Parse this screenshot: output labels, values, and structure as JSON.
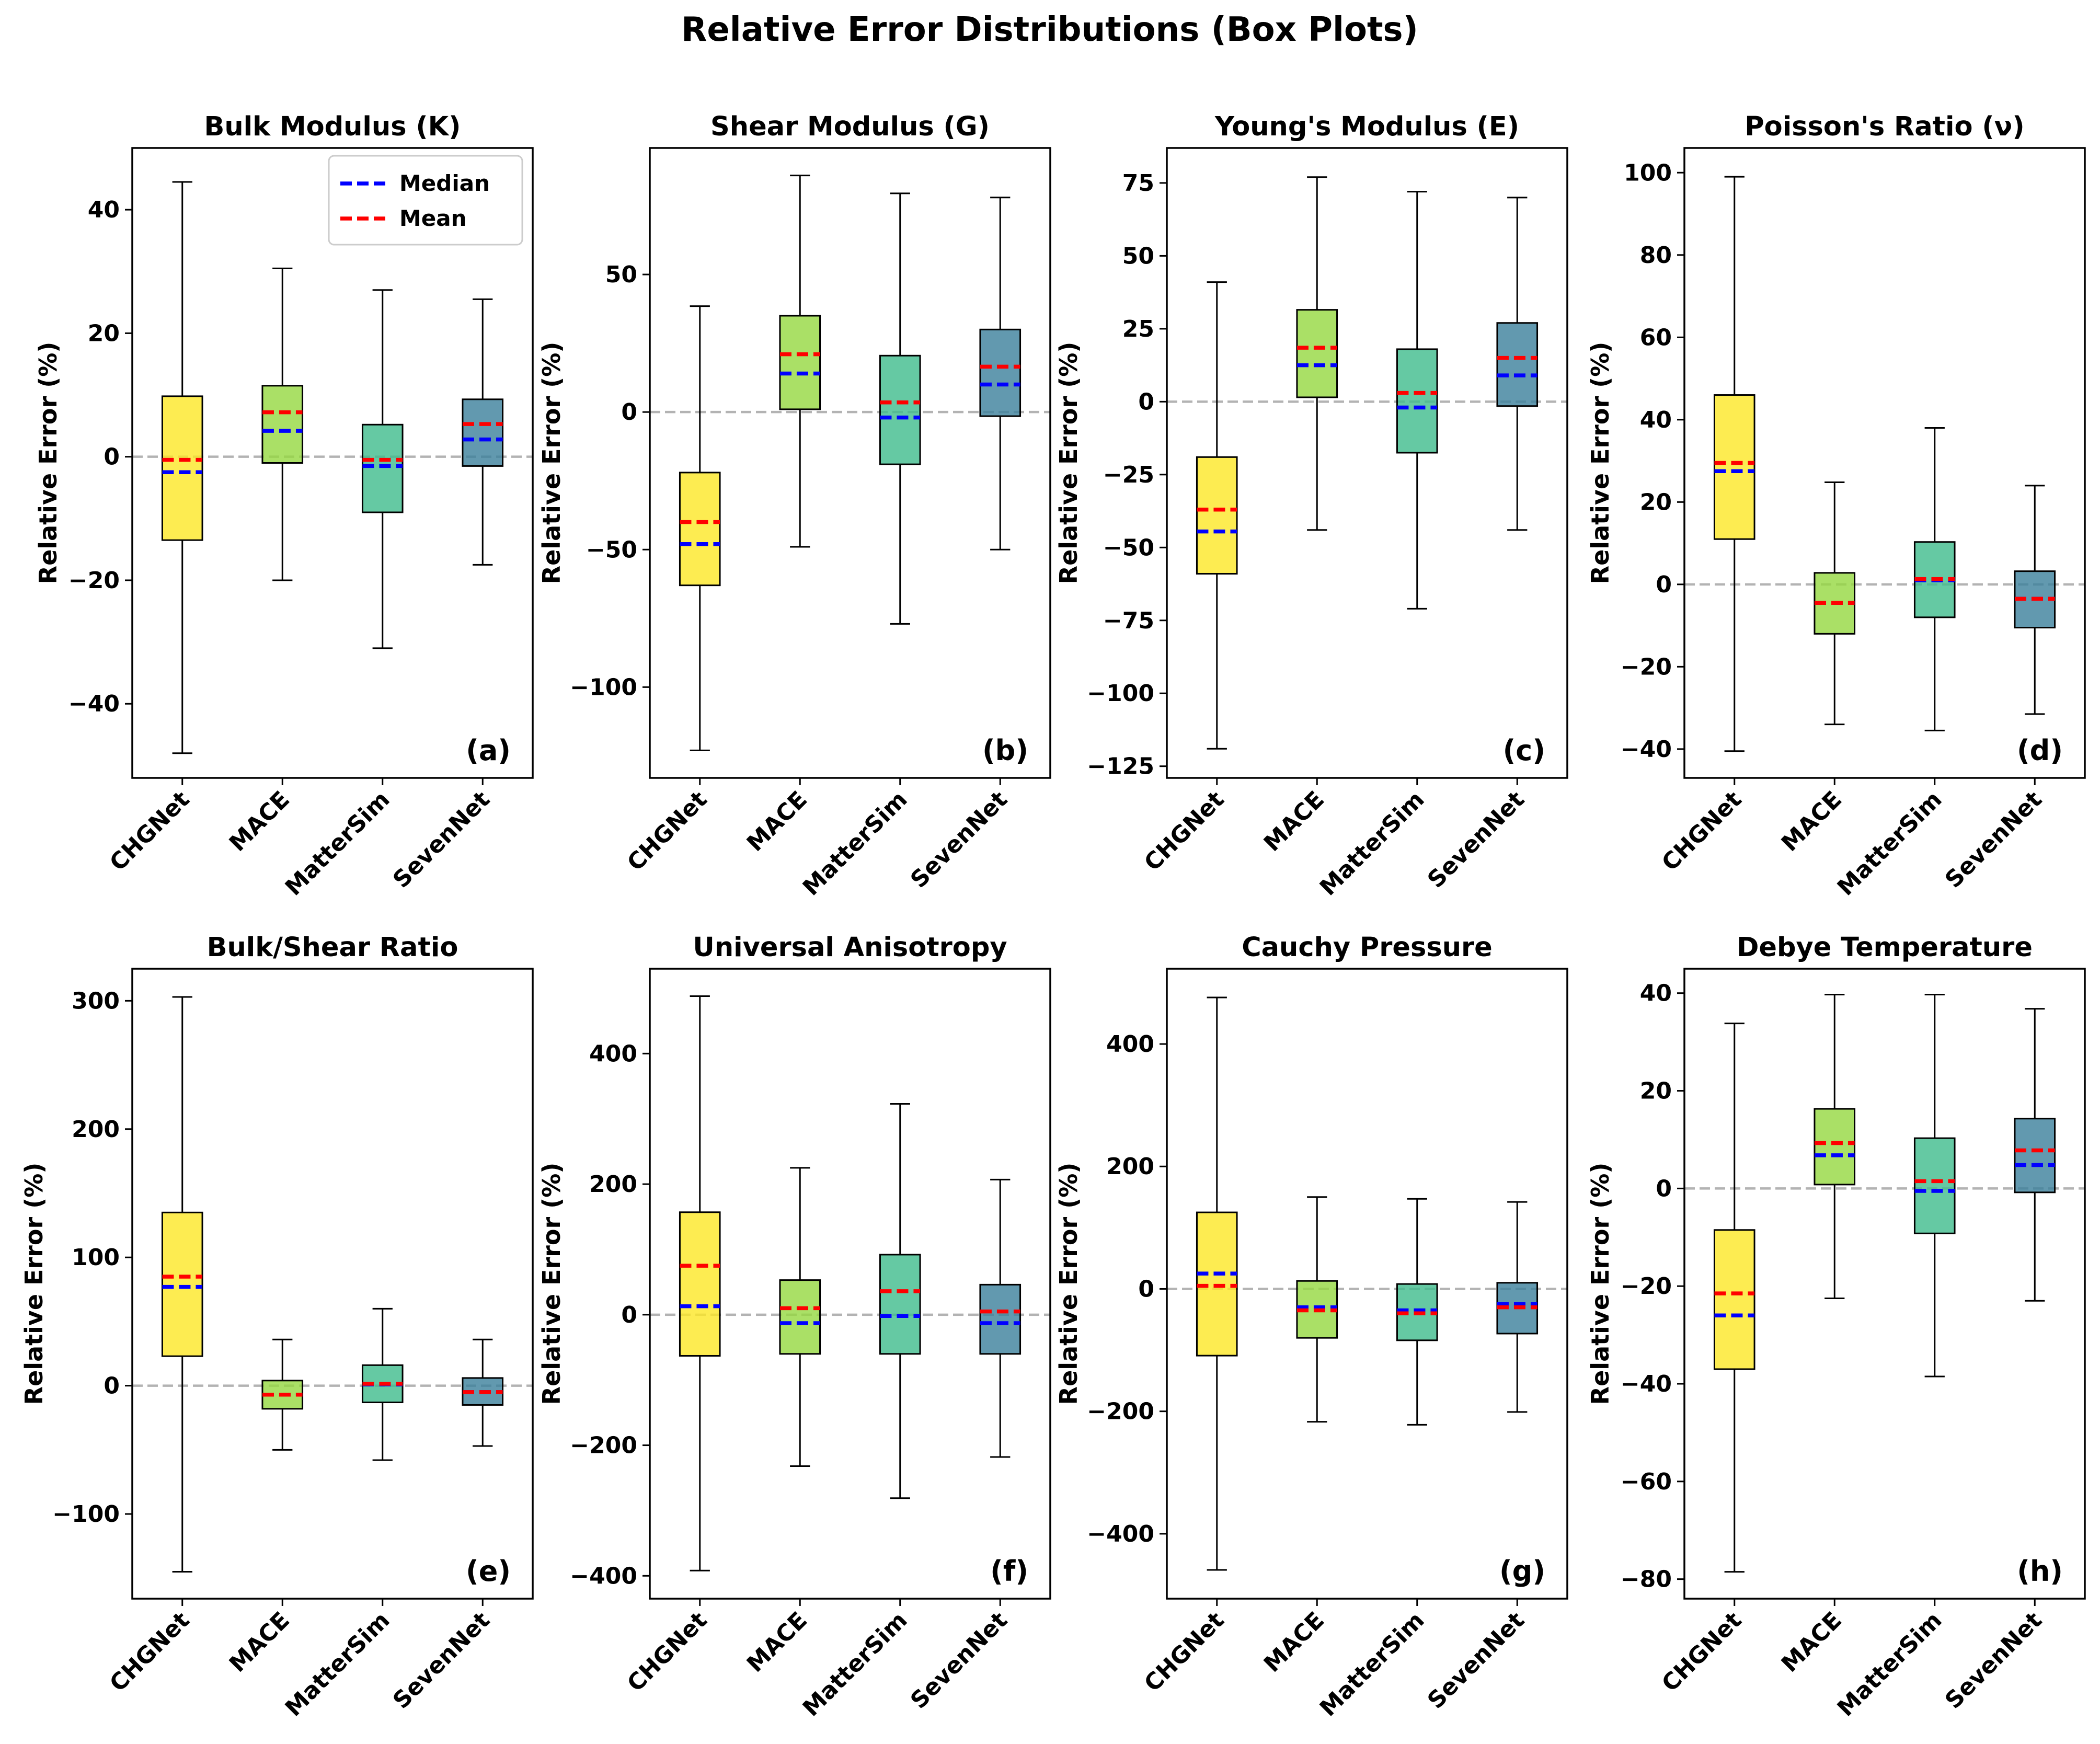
{
  "figure_title": "Relative Error Distributions (Box Plots)",
  "legend": {
    "median_label": "Median",
    "mean_label": "Mean"
  },
  "colors": {
    "median": "#0000ff",
    "mean": "#ff0000",
    "zero_line": "#b3b3b3",
    "box_fill": [
      "#fde725",
      "#95d840",
      "#3fbc8c",
      "#3b7f9b"
    ]
  },
  "chart_data": [
    {
      "type": "box",
      "title": "Bulk Modulus (K)",
      "panel": "(a)",
      "ylabel": "Relative Error (%)",
      "categories": [
        "CHGNet",
        "MACE",
        "MatterSim",
        "SevenNet"
      ],
      "ylim": [
        -52,
        50
      ],
      "yticks": [
        -40,
        -20,
        0,
        20,
        40
      ],
      "show_legend": true,
      "boxes": [
        {
          "whislo": -48,
          "q1": -13.5,
          "med": -2.5,
          "mean": -0.5,
          "q3": 9.8,
          "whishi": 44.5
        },
        {
          "whislo": -20,
          "q1": -1,
          "med": 4.2,
          "mean": 7.2,
          "q3": 11.5,
          "whishi": 30.5
        },
        {
          "whislo": -31,
          "q1": -9,
          "med": -1.5,
          "mean": -0.5,
          "q3": 5.2,
          "whishi": 27
        },
        {
          "whislo": -17.5,
          "q1": -1.5,
          "med": 2.8,
          "mean": 5.3,
          "q3": 9.3,
          "whishi": 25.5
        }
      ]
    },
    {
      "type": "box",
      "title": "Shear Modulus (G)",
      "panel": "(b)",
      "ylabel": "Relative Error (%)",
      "categories": [
        "CHGNet",
        "MACE",
        "MatterSim",
        "SevenNet"
      ],
      "ylim": [
        -133,
        96
      ],
      "yticks": [
        -100,
        -50,
        0,
        50
      ],
      "show_legend": false,
      "boxes": [
        {
          "whislo": -123,
          "q1": -63,
          "med": -48,
          "mean": -40,
          "q3": -22,
          "whishi": 38.5
        },
        {
          "whislo": -49,
          "q1": 1,
          "med": 14,
          "mean": 21,
          "q3": 35,
          "whishi": 86
        },
        {
          "whislo": -77,
          "q1": -19,
          "med": -2,
          "mean": 3.5,
          "q3": 20.5,
          "whishi": 79.5
        },
        {
          "whislo": -50,
          "q1": -1.5,
          "med": 10,
          "mean": 16.5,
          "q3": 30,
          "whishi": 78
        }
      ]
    },
    {
      "type": "box",
      "title": "Young's Modulus (E)",
      "panel": "(c)",
      "ylabel": "Relative Error (%)",
      "categories": [
        "CHGNet",
        "MACE",
        "MatterSim",
        "SevenNet"
      ],
      "ylim": [
        -129,
        87
      ],
      "yticks": [
        -125,
        -100,
        -75,
        -50,
        -25,
        0,
        25,
        50,
        75
      ],
      "show_legend": false,
      "boxes": [
        {
          "whislo": -119,
          "q1": -59,
          "med": -44.5,
          "mean": -37,
          "q3": -19,
          "whishi": 41
        },
        {
          "whislo": -44,
          "q1": 1.5,
          "med": 12.5,
          "mean": 18.5,
          "q3": 31.5,
          "whishi": 77
        },
        {
          "whislo": -71,
          "q1": -17.5,
          "med": -2,
          "mean": 3,
          "q3": 18,
          "whishi": 72
        },
        {
          "whislo": -44,
          "q1": -1.5,
          "med": 9,
          "mean": 15,
          "q3": 27,
          "whishi": 70
        }
      ]
    },
    {
      "type": "box",
      "title": "Poisson's Ratio (ν)",
      "panel": "(d)",
      "ylabel": "Relative Error (%)",
      "categories": [
        "CHGNet",
        "MACE",
        "MatterSim",
        "SevenNet"
      ],
      "ylim": [
        -47,
        106
      ],
      "yticks": [
        -40,
        -20,
        0,
        20,
        40,
        60,
        80,
        100
      ],
      "show_legend": false,
      "boxes": [
        {
          "whislo": -40.5,
          "q1": 11,
          "med": 27.5,
          "mean": 29.5,
          "q3": 46,
          "whishi": 99
        },
        {
          "whislo": -34,
          "q1": -12,
          "med": -4.5,
          "mean": -4.5,
          "q3": 2.8,
          "whishi": 24.8
        },
        {
          "whislo": -35.5,
          "q1": -8,
          "med": 1,
          "mean": 1.3,
          "q3": 10.3,
          "whishi": 38
        },
        {
          "whislo": -31.5,
          "q1": -10.5,
          "med": -3.5,
          "mean": -3.5,
          "q3": 3.2,
          "whishi": 24
        }
      ]
    },
    {
      "type": "box",
      "title": "Bulk/Shear Ratio",
      "panel": "(e)",
      "ylabel": "Relative Error (%)",
      "categories": [
        "CHGNet",
        "MACE",
        "MatterSim",
        "SevenNet"
      ],
      "ylim": [
        -166,
        325
      ],
      "yticks": [
        -100,
        0,
        100,
        200,
        300
      ],
      "show_legend": false,
      "boxes": [
        {
          "whislo": -145,
          "q1": 23,
          "med": 77,
          "mean": 85,
          "q3": 135,
          "whishi": 303
        },
        {
          "whislo": -50,
          "q1": -18,
          "med": -7,
          "mean": -7,
          "q3": 4,
          "whishi": 36
        },
        {
          "whislo": -58,
          "q1": -13,
          "med": 1,
          "mean": 1.5,
          "q3": 16,
          "whishi": 60
        },
        {
          "whislo": -47,
          "q1": -15,
          "med": -5,
          "mean": -5,
          "q3": 6,
          "whishi": 36
        }
      ]
    },
    {
      "type": "box",
      "title": "Universal Anisotropy",
      "panel": "(f)",
      "ylabel": "Relative Error (%)",
      "categories": [
        "CHGNet",
        "MACE",
        "MatterSim",
        "SevenNet"
      ],
      "ylim": [
        -435,
        530
      ],
      "yticks": [
        -400,
        -200,
        0,
        200,
        400
      ],
      "show_legend": false,
      "boxes": [
        {
          "whislo": -392,
          "q1": -63,
          "med": 13,
          "mean": 75,
          "q3": 157,
          "whishi": 488
        },
        {
          "whislo": -232,
          "q1": -60,
          "med": -13,
          "mean": 10,
          "q3": 53,
          "whishi": 225
        },
        {
          "whislo": -281,
          "q1": -60,
          "med": -2,
          "mean": 36,
          "q3": 92,
          "whishi": 323
        },
        {
          "whislo": -218,
          "q1": -60,
          "med": -13,
          "mean": 5,
          "q3": 46,
          "whishi": 207
        }
      ]
    },
    {
      "type": "box",
      "title": "Cauchy Pressure",
      "panel": "(g)",
      "ylabel": "Relative Error (%)",
      "categories": [
        "CHGNet",
        "MACE",
        "MatterSim",
        "SevenNet"
      ],
      "ylim": [
        -506,
        523
      ],
      "yticks": [
        -400,
        -200,
        0,
        200,
        400
      ],
      "show_legend": false,
      "boxes": [
        {
          "whislo": -459,
          "q1": -109,
          "med": 25,
          "mean": 5,
          "q3": 125,
          "whishi": 476
        },
        {
          "whislo": -217,
          "q1": -80,
          "med": -30,
          "mean": -35,
          "q3": 13,
          "whishi": 150
        },
        {
          "whislo": -222,
          "q1": -84,
          "med": -35,
          "mean": -40,
          "q3": 8,
          "whishi": 147
        },
        {
          "whislo": -201,
          "q1": -73,
          "med": -25,
          "mean": -30,
          "q3": 10,
          "whishi": 142
        }
      ]
    },
    {
      "type": "box",
      "title": "Debye Temperature",
      "panel": "(h)",
      "ylabel": "Relative Error (%)",
      "categories": [
        "CHGNet",
        "MACE",
        "MatterSim",
        "SevenNet"
      ],
      "ylim": [
        -84,
        45
      ],
      "yticks": [
        -80,
        -60,
        -40,
        -20,
        0,
        20,
        40
      ],
      "show_legend": false,
      "boxes": [
        {
          "whislo": -78.5,
          "q1": -37,
          "med": -26,
          "mean": -21.5,
          "q3": -8.5,
          "whishi": 33.8
        },
        {
          "whislo": -22.5,
          "q1": 0.8,
          "med": 6.8,
          "mean": 9.3,
          "q3": 16.3,
          "whishi": 39.7
        },
        {
          "whislo": -38.5,
          "q1": -9.2,
          "med": -0.5,
          "mean": 1.5,
          "q3": 10.3,
          "whishi": 39.7
        },
        {
          "whislo": -23,
          "q1": -0.8,
          "med": 4.8,
          "mean": 7.8,
          "q3": 14.3,
          "whishi": 36.8
        }
      ]
    }
  ]
}
